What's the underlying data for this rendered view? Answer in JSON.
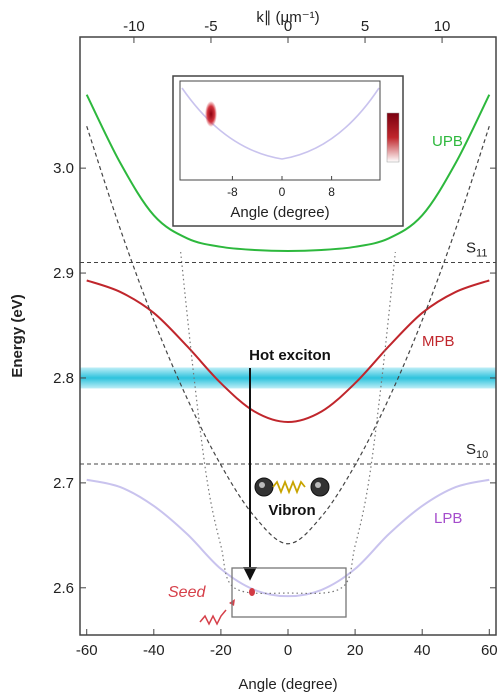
{
  "chart_data": {
    "type": "line",
    "xlabel": "Angle (degree)",
    "ylabel": "Energy (eV)",
    "top_xlabel": "k∥ (μm⁻¹)",
    "xlim": [
      -62,
      62
    ],
    "ylim": [
      2.555,
      3.125
    ],
    "top_xlim": [
      -13.5,
      13.5
    ],
    "x_ticks": [
      -60,
      -40,
      -20,
      0,
      20,
      40,
      60
    ],
    "y_ticks": [
      2.6,
      2.7,
      2.8,
      2.9,
      3.0
    ],
    "top_ticks": [
      -10,
      -5,
      0,
      5,
      10
    ],
    "grid": false,
    "series": [
      {
        "name": "UPB",
        "color": "#2db83d",
        "x": [
          -60,
          -50,
          -40,
          -30,
          -20,
          -10,
          0,
          10,
          20,
          30,
          40,
          50,
          60
        ],
        "y": [
          3.07,
          3.005,
          2.955,
          2.933,
          2.925,
          2.922,
          2.921,
          2.922,
          2.925,
          2.933,
          2.955,
          3.005,
          3.07
        ]
      },
      {
        "name": "MPB",
        "color": "#c0262c",
        "x": [
          -60,
          -50,
          -40,
          -30,
          -20,
          -10,
          0,
          10,
          20,
          30,
          40,
          50,
          60
        ],
        "y": [
          2.893,
          2.882,
          2.862,
          2.83,
          2.795,
          2.768,
          2.758,
          2.768,
          2.795,
          2.83,
          2.862,
          2.882,
          2.893
        ]
      },
      {
        "name": "LPB",
        "color": "#c9c3ee",
        "x": [
          -60,
          -50,
          -40,
          -30,
          -20,
          -10,
          0,
          10,
          20,
          30,
          40,
          50,
          60
        ],
        "y": [
          2.703,
          2.696,
          2.678,
          2.651,
          2.618,
          2.598,
          2.592,
          2.598,
          2.618,
          2.651,
          2.678,
          2.696,
          2.703
        ]
      },
      {
        "name": "",
        "style": "dashed",
        "color": "#444444",
        "x": [
          -60,
          -50,
          -40,
          -30,
          -20,
          -10,
          0,
          10,
          20,
          30,
          40,
          50,
          60
        ],
        "y": [
          3.04,
          2.942,
          2.855,
          2.78,
          2.717,
          2.668,
          2.642,
          2.668,
          2.717,
          2.78,
          2.855,
          2.942,
          3.04
        ]
      },
      {
        "name": "",
        "style": "dotted",
        "color": "#777777",
        "x": [
          -32,
          -28,
          -24,
          -20,
          -16,
          0,
          16,
          20,
          24,
          28,
          32
        ],
        "y": [
          2.92,
          2.8,
          2.7,
          2.64,
          2.6,
          2.595,
          2.6,
          2.64,
          2.7,
          2.8,
          2.92
        ]
      }
    ],
    "hlines": [
      {
        "label": "S",
        "sub": "11",
        "y": 2.91
      },
      {
        "label": "S",
        "sub": "10",
        "y": 2.718
      }
    ],
    "band": {
      "y": [
        2.79,
        2.81
      ],
      "label": "Hot exciton"
    },
    "annotations": {
      "upb": "UPB",
      "mpb": "MPB",
      "lpb": "LPB",
      "hot_exciton": "Hot exciton",
      "vibron": "Vibron",
      "seed": "Seed"
    },
    "inset": {
      "xlabel": "Angle (degree)",
      "x_ticks": [
        -8,
        0,
        8
      ]
    }
  }
}
